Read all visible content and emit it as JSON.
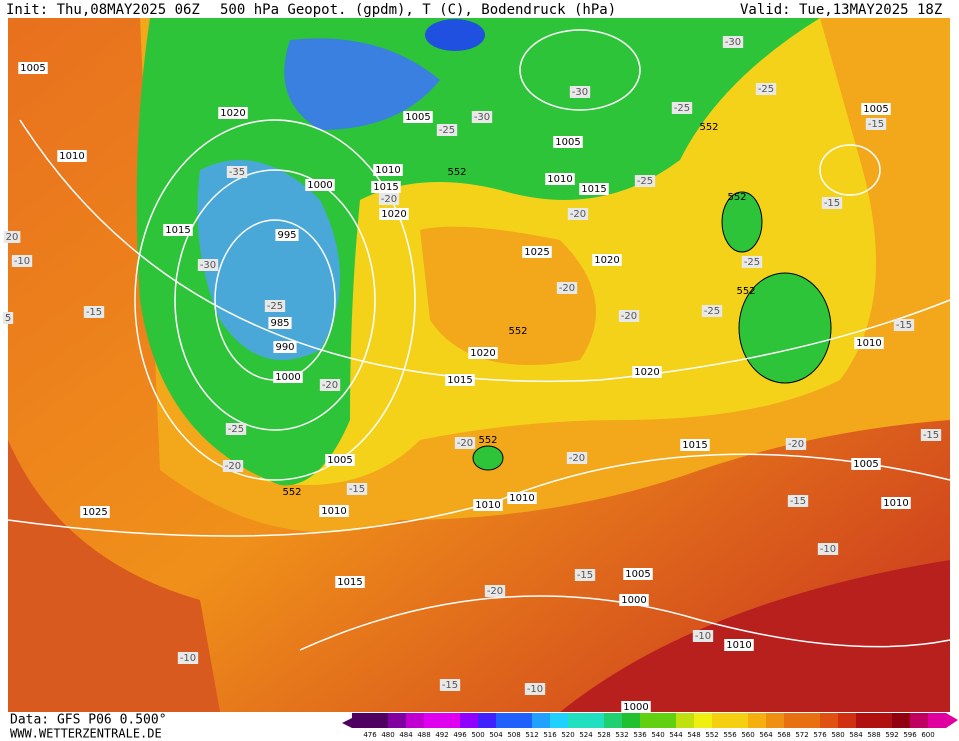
{
  "header": {
    "init": "Init: Thu,08MAY2025 06Z",
    "title": "500 hPa Geopot. (gpdm), T (C), Bodendruck (hPa)",
    "valid": "Valid: Tue,13MAY2025 18Z"
  },
  "footer": {
    "data_source": "Data: GFS P06 0.500°",
    "website": "WWW.WETTERZENTRALE.DE"
  },
  "colorbar": {
    "labels": [
      476,
      480,
      484,
      488,
      492,
      496,
      500,
      504,
      508,
      512,
      516,
      520,
      524,
      528,
      532,
      536,
      540,
      544,
      548,
      552,
      556,
      560,
      564,
      568,
      572,
      576,
      580,
      584,
      588,
      592,
      596,
      600
    ]
  },
  "map": {
    "pressure_labels": [
      "1005",
      "1010",
      "1020",
      "1015",
      "995",
      "985",
      "990",
      "1000",
      "1000",
      "1005",
      "1010",
      "1015",
      "1020",
      "1005",
      "1010",
      "1015",
      "1025",
      "1020",
      "1020",
      "1015",
      "1020",
      "1005",
      "1010",
      "1025",
      "1015",
      "1010",
      "1010",
      "1015",
      "1005",
      "1010",
      "1010",
      "1005",
      "1005",
      "1000",
      "1010",
      "1000"
    ],
    "temperature_labels": [
      "-30",
      "-30",
      "-30",
      "-25",
      "-25",
      "-15",
      "-25",
      "-20",
      "-20",
      "-25",
      "-15",
      "-25",
      "-20",
      "-20",
      "-25",
      "-15",
      "-30",
      "-25",
      "-20",
      "-35",
      "-25",
      "-20",
      "-15",
      "-20",
      "-20",
      "-20",
      "-15",
      "-15",
      "-10",
      "-15",
      "-20",
      "-10",
      "-10",
      "-15",
      "-10",
      "-10",
      "-15",
      "20",
      "5"
    ],
    "height_labels": [
      "552",
      "552",
      "552",
      "552",
      "552",
      "552",
      "552"
    ]
  }
}
